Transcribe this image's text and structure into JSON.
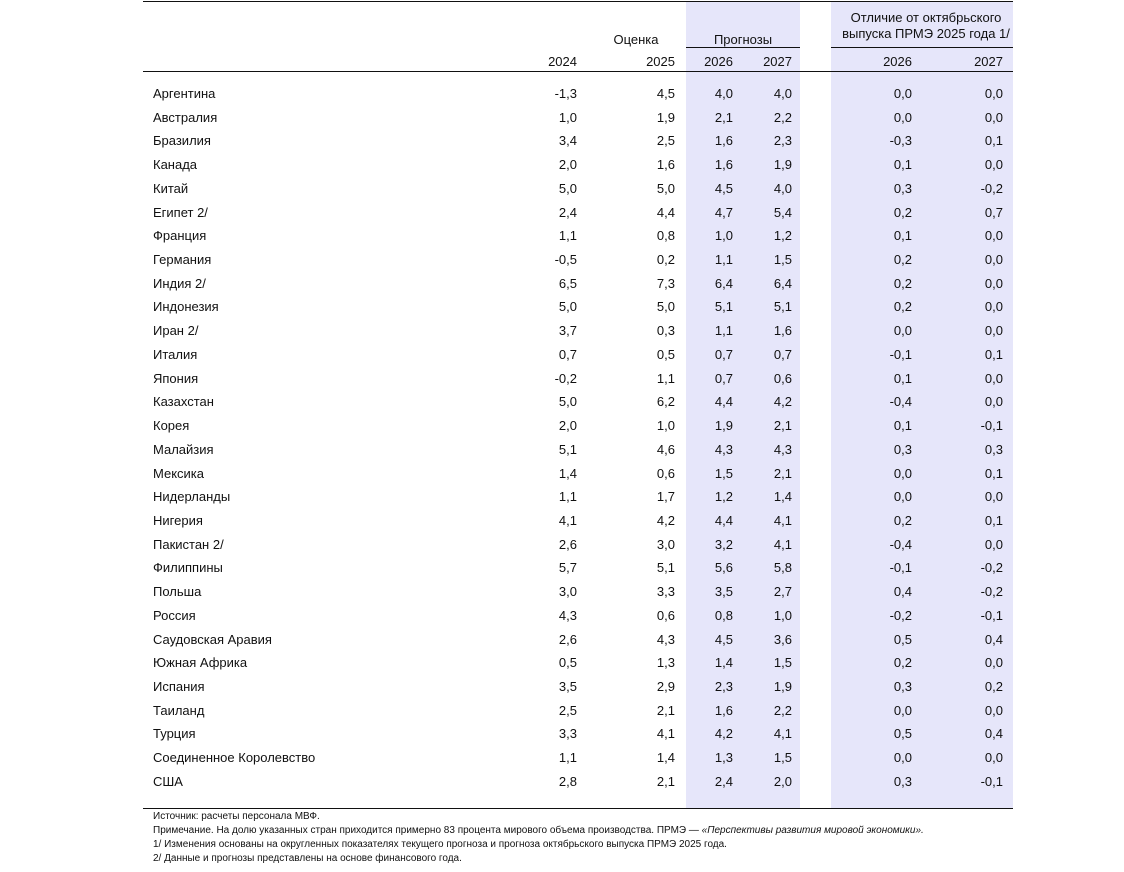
{
  "header": {
    "estimate": "Оценка",
    "forecasts": "Прогнозы",
    "difference": [
      "Отличие от октябрьского",
      "выпуска ПРМЭ 2025 года 1/"
    ],
    "years": [
      "2024",
      "2025",
      "2026",
      "2027",
      "2026",
      "2027"
    ]
  },
  "table": {
    "rows": [
      [
        "Аргентина",
        "-1,3",
        "4,5",
        "4,0",
        "4,0",
        "0,0",
        "0,0"
      ],
      [
        "Австралия",
        "1,0",
        "1,9",
        "2,1",
        "2,2",
        "0,0",
        "0,0"
      ],
      [
        "Бразилия",
        "3,4",
        "2,5",
        "1,6",
        "2,3",
        "-0,3",
        "0,1"
      ],
      [
        "Канада",
        "2,0",
        "1,6",
        "1,6",
        "1,9",
        "0,1",
        "0,0"
      ],
      [
        "Китай",
        "5,0",
        "5,0",
        "4,5",
        "4,0",
        "0,3",
        "-0,2"
      ],
      [
        "Египет 2/",
        "2,4",
        "4,4",
        "4,7",
        "5,4",
        "0,2",
        "0,7"
      ],
      [
        "Франция",
        "1,1",
        "0,8",
        "1,0",
        "1,2",
        "0,1",
        "0,0"
      ],
      [
        "Германия",
        "-0,5",
        "0,2",
        "1,1",
        "1,5",
        "0,2",
        "0,0"
      ],
      [
        "Индия 2/",
        "6,5",
        "7,3",
        "6,4",
        "6,4",
        "0,2",
        "0,0"
      ],
      [
        "Индонезия",
        "5,0",
        "5,0",
        "5,1",
        "5,1",
        "0,2",
        "0,0"
      ],
      [
        "Иран 2/",
        "3,7",
        "0,3",
        "1,1",
        "1,6",
        "0,0",
        "0,0"
      ],
      [
        "Италия",
        "0,7",
        "0,5",
        "0,7",
        "0,7",
        "-0,1",
        "0,1"
      ],
      [
        "Япония",
        "-0,2",
        "1,1",
        "0,7",
        "0,6",
        "0,1",
        "0,0"
      ],
      [
        "Казахстан",
        "5,0",
        "6,2",
        "4,4",
        "4,2",
        "-0,4",
        "0,0"
      ],
      [
        "Корея",
        "2,0",
        "1,0",
        "1,9",
        "2,1",
        "0,1",
        "-0,1"
      ],
      [
        "Малайзия",
        "5,1",
        "4,6",
        "4,3",
        "4,3",
        "0,3",
        "0,3"
      ],
      [
        "Мексика",
        "1,4",
        "0,6",
        "1,5",
        "2,1",
        "0,0",
        "0,1"
      ],
      [
        "Нидерланды",
        "1,1",
        "1,7",
        "1,2",
        "1,4",
        "0,0",
        "0,0"
      ],
      [
        "Нигерия",
        "4,1",
        "4,2",
        "4,4",
        "4,1",
        "0,2",
        "0,1"
      ],
      [
        "Пакистан 2/",
        "2,6",
        "3,0",
        "3,2",
        "4,1",
        "-0,4",
        "0,0"
      ],
      [
        "Филиппины",
        "5,7",
        "5,1",
        "5,6",
        "5,8",
        "-0,1",
        "-0,2"
      ],
      [
        "Польша",
        "3,0",
        "3,3",
        "3,5",
        "2,7",
        "0,4",
        "-0,2"
      ],
      [
        "Россия",
        "4,3",
        "0,6",
        "0,8",
        "1,0",
        "-0,2",
        "-0,1"
      ],
      [
        "Саудовская Аравия",
        "2,6",
        "4,3",
        "4,5",
        "3,6",
        "0,5",
        "0,4"
      ],
      [
        "Южная Африка",
        "0,5",
        "1,3",
        "1,4",
        "1,5",
        "0,2",
        "0,0"
      ],
      [
        "Испания",
        "3,5",
        "2,9",
        "2,3",
        "1,9",
        "0,3",
        "0,2"
      ],
      [
        "Таиланд",
        "2,5",
        "2,1",
        "1,6",
        "2,2",
        "0,0",
        "0,0"
      ],
      [
        "Турция",
        "3,3",
        "4,1",
        "4,2",
        "4,1",
        "0,5",
        "0,4"
      ],
      [
        "Соединенное Королевство",
        "1,1",
        "1,4",
        "1,3",
        "1,5",
        "0,0",
        "0,0"
      ],
      [
        "США",
        "2,8",
        "2,1",
        "2,4",
        "2,0",
        "0,3",
        "-0,1"
      ]
    ]
  },
  "notes": {
    "source": "Источник: расчеты персонала МВФ.",
    "general": [
      "Примечание. На долю указанных стран приходится примерно 83 процента мирового объема производства. ПРМЭ — ",
      "«Перспективы развития мировой экономики»."
    ],
    "footnotes": [
      "1/ Изменения основаны на округленных показателях текущего прогноза и прогноза октябрьского выпуска ПРМЭ 2025 года.",
      "2/ Данные и прогнозы представлены на основе финансового года."
    ]
  }
}
